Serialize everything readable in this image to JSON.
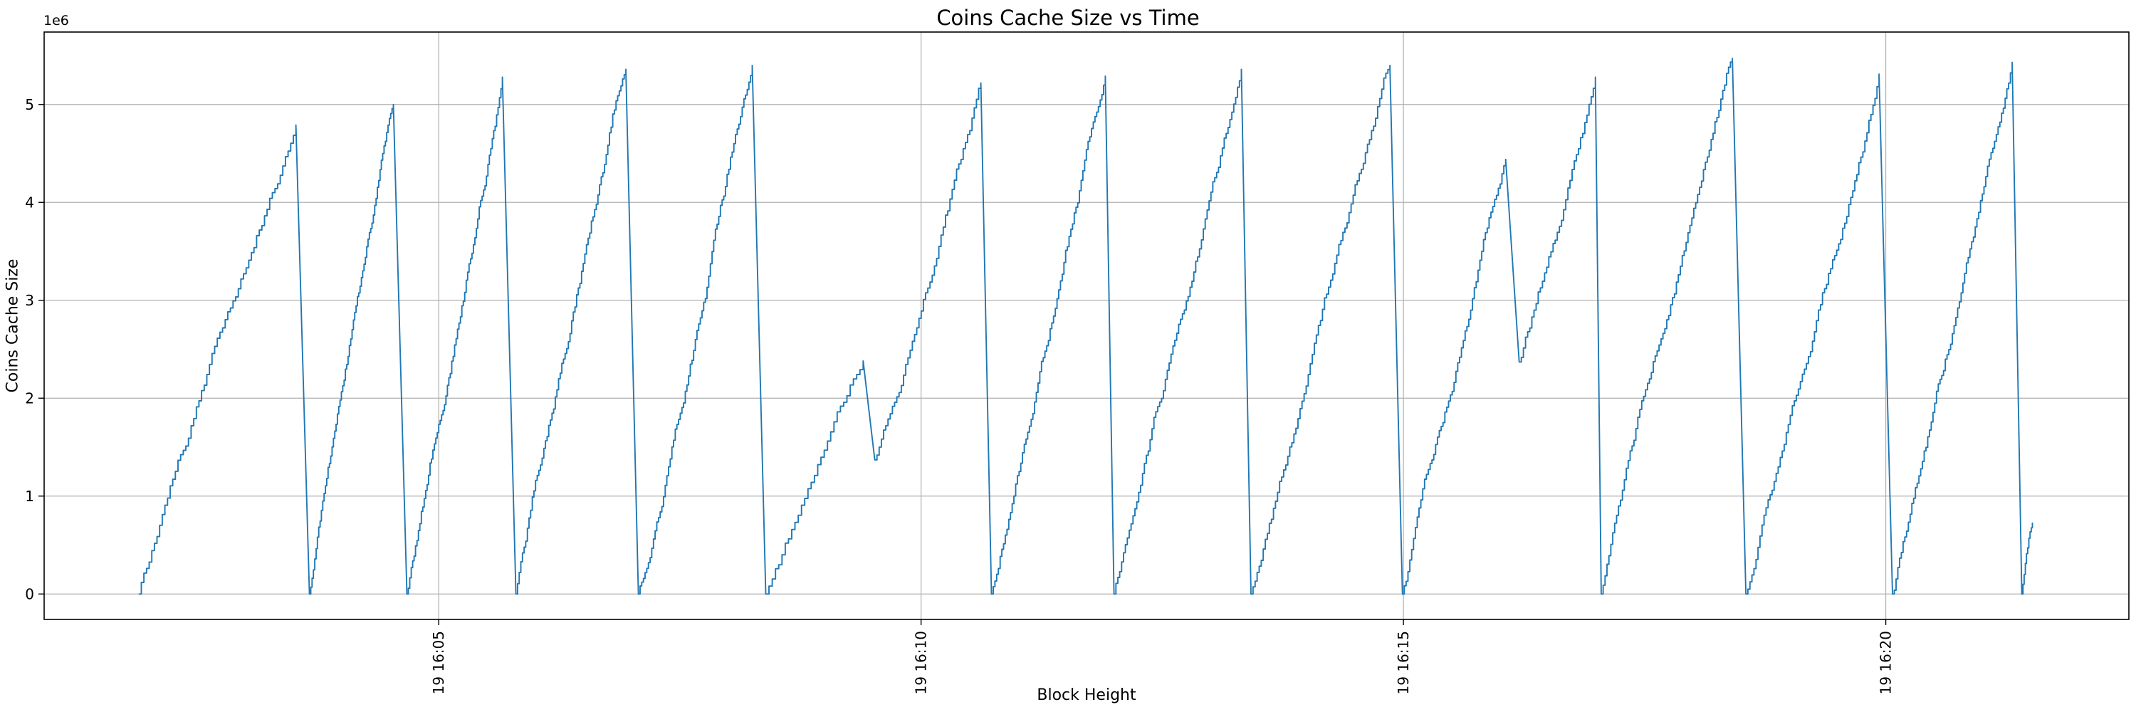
{
  "chart_data": {
    "type": "line",
    "title": "Coins Cache Size vs Time",
    "xlabel": "Block Height",
    "ylabel": "Coins Cache Size",
    "y_offset_label": "1e6",
    "grid": true,
    "legend": "none",
    "line_color": "#1f77b4",
    "grid_color": "#b0b0b0",
    "spine_color": "#000000",
    "x_axis_unit": "time (day 19, HH:MM)",
    "x_ticks": [
      {
        "t": 5,
        "label": "19 16:05"
      },
      {
        "t": 10,
        "label": "19 16:10"
      },
      {
        "t": 15,
        "label": "19 16:15"
      },
      {
        "t": 20,
        "label": "19 16:20"
      }
    ],
    "y_ticks": [
      0,
      1,
      2,
      3,
      4,
      5
    ],
    "x_range_minutes_after_1600": [
      0.91,
      22.52
    ],
    "y_range_millions": [
      -0.26,
      5.74
    ],
    "series": [
      {
        "name": "coins_cache_size",
        "units": "entries (millions)",
        "style": "sawtooth, staircase rises, sharp flushes to zero",
        "points": [
          [
            1.89,
            0.0
          ],
          [
            3.52,
            4.79
          ],
          [
            3.66,
            0.0
          ],
          [
            4.53,
            5.0
          ],
          [
            4.67,
            0.0
          ],
          [
            5.66,
            5.28
          ],
          [
            5.8,
            0.0
          ],
          [
            6.94,
            5.36
          ],
          [
            7.07,
            0.0
          ],
          [
            8.25,
            5.4
          ],
          [
            8.39,
            0.0
          ],
          [
            9.4,
            2.38
          ],
          [
            9.52,
            1.37
          ],
          [
            10.62,
            5.22
          ],
          [
            10.73,
            0.0
          ],
          [
            11.91,
            5.29
          ],
          [
            12.0,
            0.0
          ],
          [
            13.32,
            5.36
          ],
          [
            13.42,
            0.0
          ],
          [
            14.86,
            5.4
          ],
          [
            14.99,
            0.0
          ],
          [
            16.06,
            4.44
          ],
          [
            16.2,
            2.37
          ],
          [
            16.99,
            5.28
          ],
          [
            17.05,
            0.0
          ],
          [
            18.41,
            5.47
          ],
          [
            18.55,
            0.0
          ],
          [
            19.93,
            5.31
          ],
          [
            20.07,
            0.0
          ],
          [
            21.31,
            5.43
          ],
          [
            21.41,
            0.0
          ],
          [
            21.52,
            0.73
          ]
        ]
      }
    ]
  }
}
